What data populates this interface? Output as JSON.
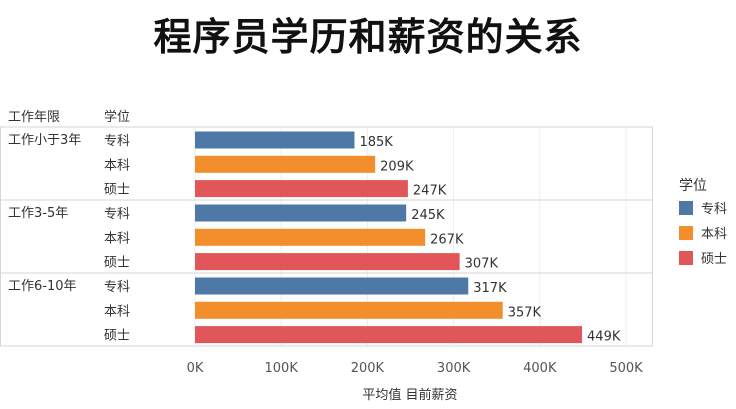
{
  "chart_data": {
    "type": "bar",
    "title": "程序员学历和薪资的关系",
    "header_row_group": "工作年限",
    "header_row_sub": "学位",
    "xlabel": "平均值 目前薪资",
    "x_ticks": [
      "0K",
      "100K",
      "200K",
      "300K",
      "400K",
      "500K"
    ],
    "xlim": [
      0,
      500
    ],
    "grid": true,
    "legend_title": "学位",
    "legend_position": "right",
    "colors": {
      "专科": "#4e79a7",
      "本科": "#f28e2b",
      "硕士": "#e15759"
    },
    "groups": [
      {
        "name": "工作小于3年",
        "bars": [
          {
            "degree": "专科",
            "value": 185,
            "label": "185K"
          },
          {
            "degree": "本科",
            "value": 209,
            "label": "209K"
          },
          {
            "degree": "硕士",
            "value": 247,
            "label": "247K"
          }
        ]
      },
      {
        "name": "工作3-5年",
        "bars": [
          {
            "degree": "专科",
            "value": 245,
            "label": "245K"
          },
          {
            "degree": "本科",
            "value": 267,
            "label": "267K"
          },
          {
            "degree": "硕士",
            "value": 307,
            "label": "307K"
          }
        ]
      },
      {
        "name": "工作6-10年",
        "bars": [
          {
            "degree": "专科",
            "value": 317,
            "label": "317K"
          },
          {
            "degree": "本科",
            "value": 357,
            "label": "357K"
          },
          {
            "degree": "硕士",
            "value": 449,
            "label": "449K"
          }
        ]
      }
    ],
    "legend": [
      "专科",
      "本科",
      "硕士"
    ]
  }
}
